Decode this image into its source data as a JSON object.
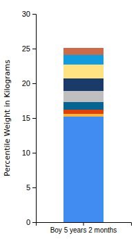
{
  "chart_data": {
    "type": "bar",
    "stacked": true,
    "y_label": "Percentile Weight in Kilograms",
    "categories": [
      "Boy 5 years 2 months"
    ],
    "series": [
      {
        "color": "#418CF0",
        "values": [
          15.2
        ]
      },
      {
        "color": "#FCB441",
        "values": [
          0.4
        ]
      },
      {
        "color": "#E0400A",
        "values": [
          0.6
        ]
      },
      {
        "color": "#056492",
        "values": [
          1.1
        ]
      },
      {
        "color": "#BFBFBF",
        "values": [
          1.6
        ]
      },
      {
        "color": "#1A3B69",
        "values": [
          1.8
        ]
      },
      {
        "color": "#FFE382",
        "values": [
          2.0
        ]
      },
      {
        "color": "#129CDD",
        "values": [
          1.4
        ]
      },
      {
        "color": "#CA6B4B",
        "values": [
          1.0
        ]
      }
    ],
    "ylim": [
      0,
      30
    ],
    "yticks": [
      0,
      5,
      10,
      15,
      20,
      25,
      30
    ],
    "grid": false
  }
}
